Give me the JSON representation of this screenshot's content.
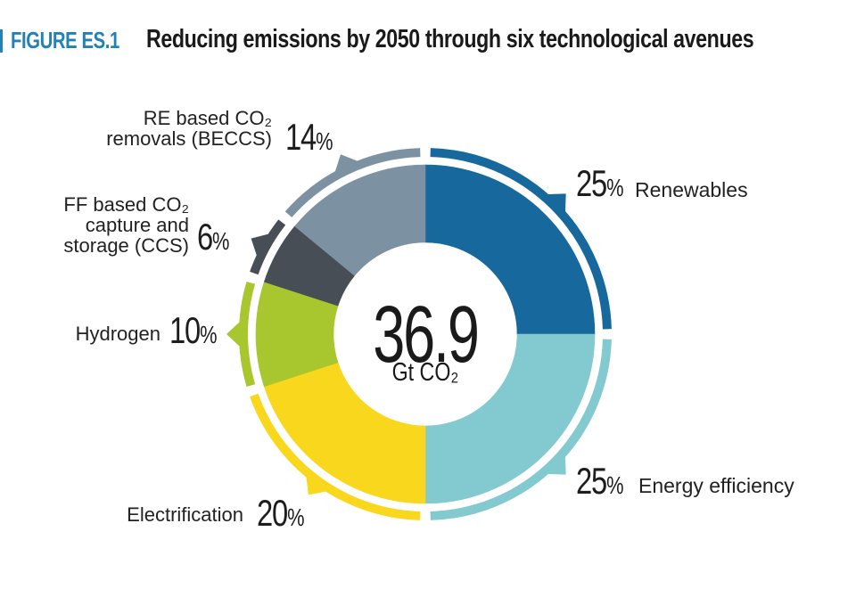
{
  "figure": {
    "label": "FIGURE ES.1",
    "title": "Reducing emissions by 2050 through six technological avenues"
  },
  "ui": {
    "percent_sign": "%"
  },
  "chart_data": {
    "type": "pie",
    "subtype": "donut-with-outer-ring",
    "title": "Reducing emissions by 2050 through six technological avenues",
    "center_label": {
      "value": "36.9",
      "unit": "Gt CO₂"
    },
    "total": {
      "value": 36.9,
      "unit": "Gt CO2"
    },
    "legend_position": "around-chart",
    "start_angle_deg": 0,
    "direction": "clockwise",
    "segments": [
      {
        "id": "renewables",
        "label": "Renewables",
        "pct": 25,
        "pct_display": "25",
        "color": "#17699D",
        "label_side": "right"
      },
      {
        "id": "energy-efficiency",
        "label": "Energy efficiency",
        "pct": 25,
        "pct_display": "25",
        "color": "#82C9D0",
        "label_side": "right"
      },
      {
        "id": "electrification",
        "label": "Electrification",
        "pct": 20,
        "pct_display": "20",
        "color": "#F9D71C",
        "label_side": "left"
      },
      {
        "id": "hydrogen",
        "label": "Hydrogen",
        "pct": 10,
        "pct_display": "10",
        "color": "#A8C62E",
        "label_side": "left"
      },
      {
        "id": "ccs",
        "label": "FF based CO₂ capture and storage (CCS)",
        "label_lines": [
          "FF based CO₂",
          "capture and",
          "storage (CCS)"
        ],
        "pct": 6,
        "pct_display": "6",
        "color": "#474E55",
        "label_side": "left"
      },
      {
        "id": "beccs",
        "label": "RE based CO₂ removals (BECCS)",
        "label_lines": [
          "RE based CO₂",
          "removals (BECCS)"
        ],
        "pct": 14,
        "pct_display": "14",
        "color": "#7C92A2",
        "label_side": "left"
      }
    ]
  }
}
